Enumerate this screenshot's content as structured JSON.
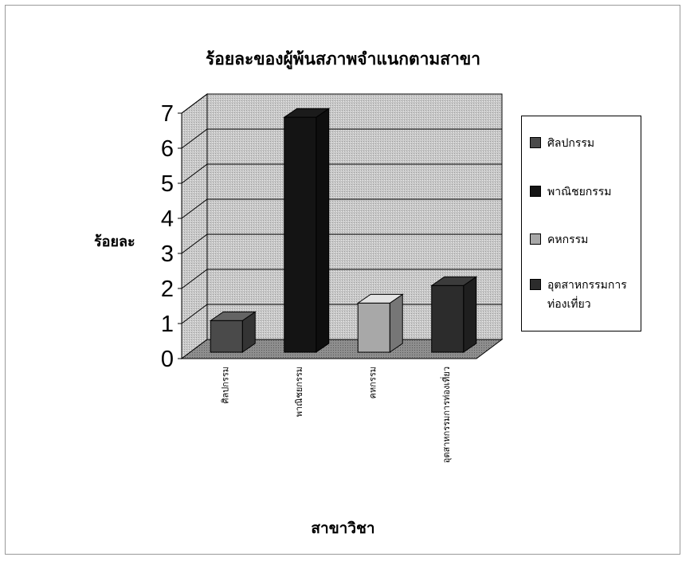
{
  "chart_data": {
    "type": "bar",
    "title": "ร้อยละของผู้พ้นสภาพจำแนกตามสาขา",
    "xlabel": "สาขาวิชา",
    "ylabel": "ร้อยละ",
    "ylim": [
      0,
      7
    ],
    "yticks": [
      "0",
      "1",
      "2",
      "3",
      "4",
      "5",
      "6",
      "7"
    ],
    "categories": [
      "ศิลปกรรม",
      "พาณิชยกรรม",
      "คหกรรม",
      "อุตสาหกรรมการท่องเที่ยว"
    ],
    "values": [
      0.9,
      6.7,
      1.4,
      1.9
    ],
    "colors": [
      "#4a4a4a",
      "#141414",
      "#a8a8a8",
      "#2c2c2c"
    ],
    "grid": true,
    "legend_position": "right",
    "legend": [
      "ศิลปกรรม",
      "พาณิชยกรรม",
      "คหกรรม",
      "อุตสาหกรรมการท่องเที่ยว"
    ]
  }
}
